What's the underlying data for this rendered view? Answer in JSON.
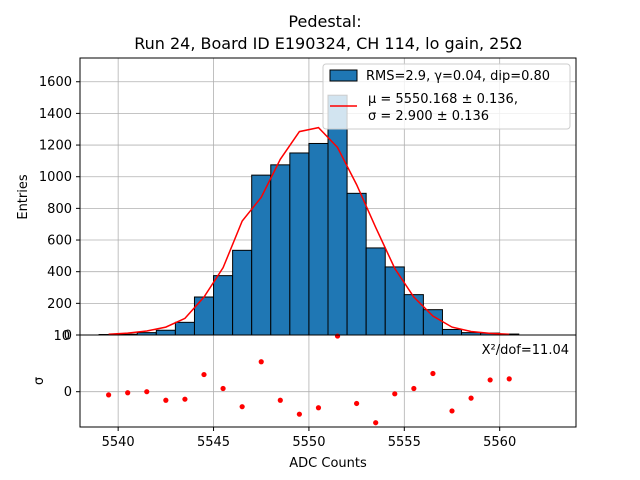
{
  "chart_data": [
    {
      "type": "bar",
      "title_line1": "Pedestal:",
      "title_line2": "Run 24, Board ID E190324, CH 114, lo gain, 25Ω",
      "ylabel": "Entries",
      "xlim": [
        5538,
        5564
      ],
      "ylim": [
        0,
        1750
      ],
      "yticks": [
        0,
        200,
        400,
        600,
        800,
        1000,
        1200,
        1400,
        1600
      ],
      "grid": true,
      "legend_placement": "top-right",
      "bar_color": "#1f77b4",
      "fit_color": "#ff0000",
      "bins": [
        {
          "x": 5539,
          "value": 3
        },
        {
          "x": 5540,
          "value": 5
        },
        {
          "x": 5541,
          "value": 15
        },
        {
          "x": 5542,
          "value": 30
        },
        {
          "x": 5543,
          "value": 80
        },
        {
          "x": 5544,
          "value": 240
        },
        {
          "x": 5545,
          "value": 375
        },
        {
          "x": 5546,
          "value": 535
        },
        {
          "x": 5547,
          "value": 1010
        },
        {
          "x": 5548,
          "value": 1075
        },
        {
          "x": 5549,
          "value": 1150
        },
        {
          "x": 5550,
          "value": 1210
        },
        {
          "x": 5551,
          "value": 1515
        },
        {
          "x": 5552,
          "value": 895
        },
        {
          "x": 5553,
          "value": 550
        },
        {
          "x": 5554,
          "value": 430
        },
        {
          "x": 5555,
          "value": 255
        },
        {
          "x": 5556,
          "value": 160
        },
        {
          "x": 5557,
          "value": 35
        },
        {
          "x": 5558,
          "value": 15
        },
        {
          "x": 5559,
          "value": 12
        },
        {
          "x": 5560,
          "value": 6
        }
      ],
      "fit_points": [
        {
          "x": 5539.5,
          "y": 5
        },
        {
          "x": 5540.5,
          "y": 12
        },
        {
          "x": 5541.5,
          "y": 25
        },
        {
          "x": 5542.5,
          "y": 50
        },
        {
          "x": 5543.5,
          "y": 105
        },
        {
          "x": 5544.5,
          "y": 240
        },
        {
          "x": 5545.5,
          "y": 425
        },
        {
          "x": 5546.5,
          "y": 720
        },
        {
          "x": 5547.5,
          "y": 870
        },
        {
          "x": 5548.5,
          "y": 1110
        },
        {
          "x": 5549.5,
          "y": 1285
        },
        {
          "x": 5550.5,
          "y": 1310
        },
        {
          "x": 5551.5,
          "y": 1185
        },
        {
          "x": 5552.5,
          "y": 950
        },
        {
          "x": 5553.5,
          "y": 680
        },
        {
          "x": 5554.5,
          "y": 420
        },
        {
          "x": 5555.5,
          "y": 240
        },
        {
          "x": 5556.5,
          "y": 120
        },
        {
          "x": 5557.5,
          "y": 50
        },
        {
          "x": 5558.5,
          "y": 22
        },
        {
          "x": 5559.5,
          "y": 10
        },
        {
          "x": 5560.5,
          "y": 5
        }
      ],
      "legend": {
        "bar_label": "RMS=2.9, γ=0.04, dip=0.80",
        "fit_label_line1": "μ = 5550.168 ± 0.136,",
        "fit_label_line2": "σ = 2.900 ± 0.136"
      }
    },
    {
      "type": "scatter",
      "xlabel": "ADC Counts",
      "ylabel": "σ",
      "xlim": [
        5538,
        5564
      ],
      "xticks": [
        5540,
        5545,
        5550,
        5555,
        5560
      ],
      "ylim": [
        -3.3,
        5.3
      ],
      "yticks_shown": [
        0
      ],
      "top_tick_label": "10",
      "annotation": "X²/dof=11.04",
      "point_color": "#ff0000",
      "grid": true,
      "points": [
        {
          "x": 5539.5,
          "y": -0.3
        },
        {
          "x": 5540.5,
          "y": -0.1
        },
        {
          "x": 5541.5,
          "y": 0.0
        },
        {
          "x": 5542.5,
          "y": -0.8
        },
        {
          "x": 5543.5,
          "y": -0.7
        },
        {
          "x": 5544.5,
          "y": 1.6
        },
        {
          "x": 5545.5,
          "y": 0.3
        },
        {
          "x": 5546.5,
          "y": -1.4
        },
        {
          "x": 5547.5,
          "y": 2.8
        },
        {
          "x": 5548.5,
          "y": -0.8
        },
        {
          "x": 5549.5,
          "y": -2.1
        },
        {
          "x": 5550.5,
          "y": -1.5
        },
        {
          "x": 5551.5,
          "y": 5.2
        },
        {
          "x": 5552.5,
          "y": -1.1
        },
        {
          "x": 5553.5,
          "y": -2.9
        },
        {
          "x": 5554.5,
          "y": -0.2
        },
        {
          "x": 5555.5,
          "y": 0.3
        },
        {
          "x": 5556.5,
          "y": 1.7
        },
        {
          "x": 5557.5,
          "y": -1.8
        },
        {
          "x": 5558.5,
          "y": -0.6
        },
        {
          "x": 5559.5,
          "y": 1.1
        },
        {
          "x": 5560.5,
          "y": 1.2
        }
      ]
    }
  ]
}
